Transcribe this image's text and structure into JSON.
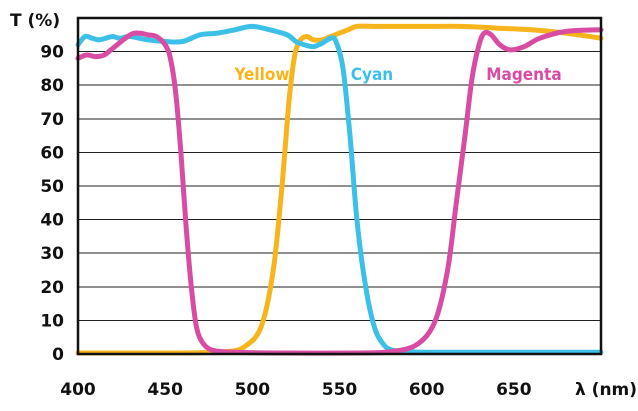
{
  "chart_data": {
    "type": "line",
    "ylabel": "T (%)",
    "xlabel": "λ (nm)",
    "xlim": [
      400,
      700
    ],
    "ylim": [
      0,
      100
    ],
    "xticks": [
      400,
      450,
      500,
      550,
      600,
      650
    ],
    "yticks": [
      0,
      10,
      20,
      30,
      40,
      50,
      60,
      70,
      80,
      90
    ],
    "grid": "horizontal",
    "series": [
      {
        "name": "Yellow",
        "color": "#f8b41c",
        "x": [
          400,
          450,
          470,
          485,
          495,
          505,
          512,
          517,
          521,
          524,
          527,
          531,
          535,
          540,
          545,
          550,
          555,
          560,
          570,
          580,
          600,
          620,
          640,
          660,
          680,
          700
        ],
        "y": [
          0.3,
          0.3,
          0.4,
          0.7,
          2,
          8,
          25,
          50,
          75,
          88,
          93,
          94.5,
          93.5,
          93.5,
          94.5,
          95.5,
          96.5,
          97.5,
          97.5,
          97.5,
          97.5,
          97.5,
          97,
          96.5,
          95.5,
          94
        ]
      },
      {
        "name": "Cyan",
        "color": "#3cc0e8",
        "x": [
          400,
          404,
          408,
          412,
          416,
          420,
          424,
          430,
          440,
          450,
          460,
          470,
          480,
          490,
          500,
          510,
          520,
          525,
          530,
          535,
          540,
          545,
          548,
          552,
          556,
          560,
          565,
          570,
          575,
          580,
          590,
          600,
          620,
          650,
          700
        ],
        "y": [
          92,
          94.5,
          94,
          93.5,
          94,
          94.5,
          94,
          94.5,
          93.5,
          93,
          93,
          95,
          95.5,
          96.5,
          97.5,
          96.5,
          95,
          93,
          92,
          91.5,
          92.5,
          94,
          93,
          85,
          65,
          40,
          20,
          8,
          3,
          1.2,
          0.7,
          0.5,
          0.5,
          0.5,
          0.5
        ]
      },
      {
        "name": "Magenta",
        "color": "#d84da3",
        "x": [
          400,
          405,
          410,
          415,
          420,
          430,
          435,
          440,
          445,
          450,
          453,
          456,
          459,
          462,
          465,
          468,
          472,
          478,
          490,
          520,
          560,
          580,
          595,
          605,
          612,
          617,
          622,
          626,
          630,
          633,
          637,
          642,
          648,
          656,
          665,
          680,
          700
        ],
        "y": [
          88,
          89,
          88.5,
          89,
          91,
          95,
          95.5,
          95,
          94.5,
          92,
          88,
          78,
          60,
          38,
          20,
          8,
          3,
          1,
          0.5,
          0.3,
          0.3,
          0.7,
          3,
          10,
          25,
          45,
          65,
          82,
          92,
          95.5,
          95,
          92,
          90.5,
          91.5,
          94,
          96,
          96.5
        ]
      }
    ]
  }
}
